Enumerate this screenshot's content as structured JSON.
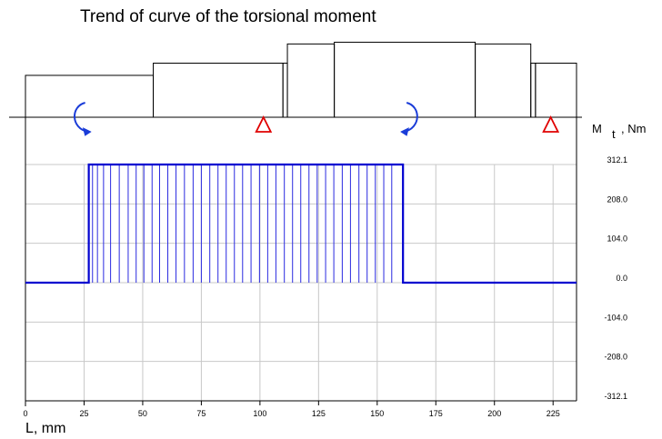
{
  "chart_data": {
    "type": "line",
    "title": "Trend of curve of the torsional moment",
    "xlabel": "L, mm",
    "ylabel": {
      "main": "M",
      "sub": "t",
      "unit": ", Nm"
    },
    "xlim": [
      0,
      235
    ],
    "ylim": [
      -312.1,
      312.1
    ],
    "x_ticks": [
      "0",
      "25",
      "50",
      "75",
      "100",
      "125",
      "150",
      "175",
      "200",
      "225"
    ],
    "y_ticks": [
      "312.1",
      "208.0",
      "104.0",
      "0.0",
      "-104.0",
      "-208.0",
      "-312.1"
    ],
    "grid": true,
    "series": [
      {
        "values": [
          [
            0,
            0
          ],
          [
            27,
            0
          ],
          [
            27,
            312.1
          ],
          [
            161,
            312.1
          ],
          [
            161,
            0
          ],
          [
            235,
            0
          ]
        ]
      }
    ],
    "hatch_x": [
      27,
      28.6,
      30.7,
      33.3,
      36.3,
      40,
      43.8,
      47.2,
      50.5,
      54,
      57.2,
      60.7,
      64.2,
      67.8,
      71.5,
      75,
      78.6,
      82.1,
      85.6,
      89.1,
      92.6,
      96.2,
      99.8,
      103.3,
      106.8,
      110.4,
      113.9,
      117.4,
      120.9,
      124.4,
      128,
      131.5,
      135.1,
      138.6,
      142.2,
      145.7,
      149.2,
      152.8,
      156.2,
      161
    ],
    "shaft_profile": [
      {
        "x0": 0,
        "x1": 54.5,
        "d": 48
      },
      {
        "x0": 54.5,
        "x1": 109.8,
        "d": 62
      },
      {
        "x0": 109.8,
        "x1": 111.7,
        "d": 62
      },
      {
        "x0": 111.7,
        "x1": 131.7,
        "d": 84
      },
      {
        "x0": 131.7,
        "x1": 191.8,
        "d": 86
      },
      {
        "x0": 191.8,
        "x1": 215.5,
        "d": 84
      },
      {
        "x0": 215.5,
        "x1": 217.5,
        "d": 62
      },
      {
        "x0": 217.5,
        "x1": 235,
        "d": 62
      }
    ],
    "moments_applied": [
      {
        "x": 27,
        "icon": "curved-arrow-clockwise",
        "color": "#1a3cd8"
      },
      {
        "x": 161,
        "icon": "curved-arrow-counterclockwise",
        "color": "#1a3cd8"
      }
    ],
    "supports": [
      {
        "x": 101.5,
        "icon": "triangle-support",
        "color": "#e00000"
      },
      {
        "x": 224,
        "icon": "triangle-support",
        "color": "#e00000"
      }
    ],
    "colors": {
      "curve": "#0000d0",
      "hatch": "#2a2ae0",
      "grid": "#c8c8c8",
      "frame": "#000000"
    }
  }
}
